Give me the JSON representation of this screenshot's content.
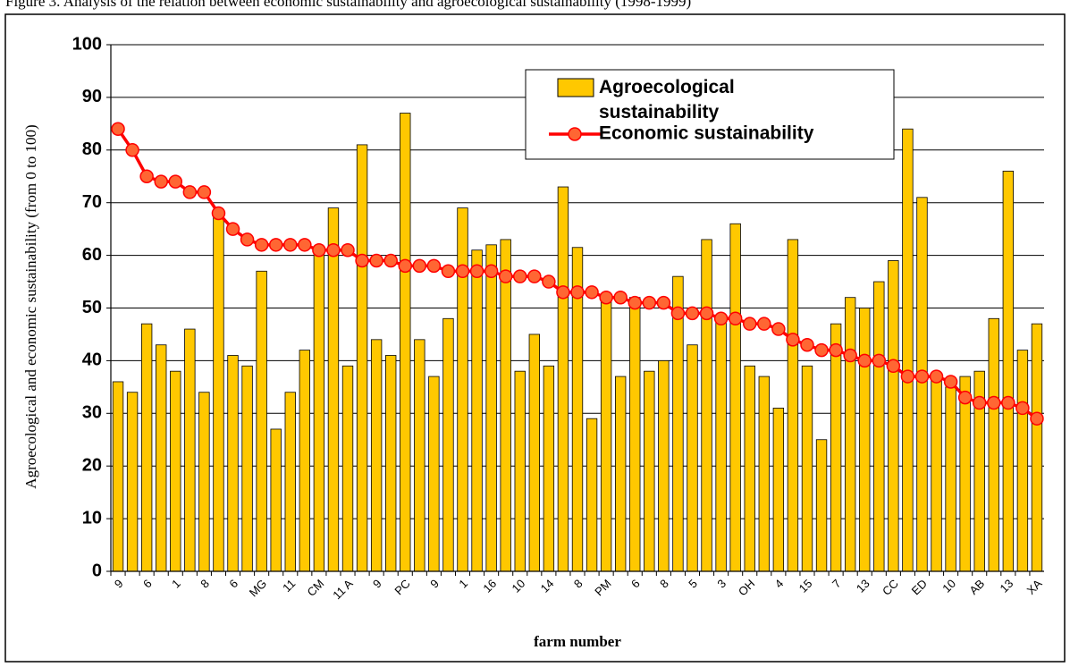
{
  "chart_data": {
    "type": "bar",
    "caption": "Figure 3. Analysis of the relation between economic sustainability and agroecological sustainability (1998-1999)",
    "x_label": "farm number",
    "y_label": "Agroecological  and economic sustainability (from 0 to 100)",
    "categories": [
      "9",
      null,
      "6",
      null,
      "1",
      null,
      "8",
      null,
      "6",
      null,
      "MG",
      null,
      "11",
      null,
      "CM",
      null,
      "11 A",
      null,
      "9",
      null,
      "PC",
      null,
      "9",
      null,
      "1",
      null,
      "16",
      null,
      "10",
      null,
      "14",
      null,
      "8",
      null,
      "PM",
      null,
      "6",
      null,
      "8",
      null,
      "5",
      null,
      "3",
      null,
      "OH",
      null,
      "4",
      null,
      "15",
      null,
      "7",
      null,
      "13",
      null,
      "CC",
      null,
      "ED",
      null,
      "10",
      null,
      "AB",
      null,
      "13",
      null,
      "XA"
    ],
    "series": [
      {
        "name": "Agroecological sustainability",
        "type": "bar",
        "color": "#ffc800",
        "values": [
          36,
          34,
          47,
          43,
          38,
          46,
          34,
          68,
          41,
          39,
          57,
          27,
          34,
          42,
          61,
          69,
          39,
          81,
          44,
          41,
          87,
          44,
          37,
          48,
          69,
          61,
          62,
          63,
          38,
          45,
          39,
          73,
          61.5,
          29,
          52,
          37,
          52,
          38,
          40,
          56,
          43,
          63,
          48,
          66,
          39,
          37,
          31,
          63,
          39,
          25,
          47,
          52,
          50,
          55,
          59,
          84,
          71,
          37,
          35,
          37,
          38,
          48,
          76,
          42,
          47
        ]
      },
      {
        "name": "Economic sustainability",
        "type": "line",
        "color": "#ff0000",
        "marker_color": "#ff6633",
        "values": [
          84,
          80,
          75,
          74,
          74,
          72,
          72,
          68,
          65,
          63,
          62,
          62,
          62,
          62,
          61,
          61,
          61,
          59,
          59,
          59,
          58,
          58,
          58,
          57,
          57,
          57,
          57,
          56,
          56,
          56,
          55,
          53,
          53,
          53,
          52,
          52,
          51,
          51,
          51,
          49,
          49,
          49,
          48,
          48,
          47,
          47,
          46,
          44,
          43,
          42,
          42,
          41,
          40,
          40,
          39,
          37,
          37,
          37,
          36,
          33,
          32,
          32,
          32,
          31,
          29
        ]
      }
    ],
    "ylim": [
      0,
      100
    ],
    "yticks": [
      0,
      10,
      20,
      30,
      40,
      50,
      60,
      70,
      80,
      90,
      100
    ],
    "grid": true
  }
}
